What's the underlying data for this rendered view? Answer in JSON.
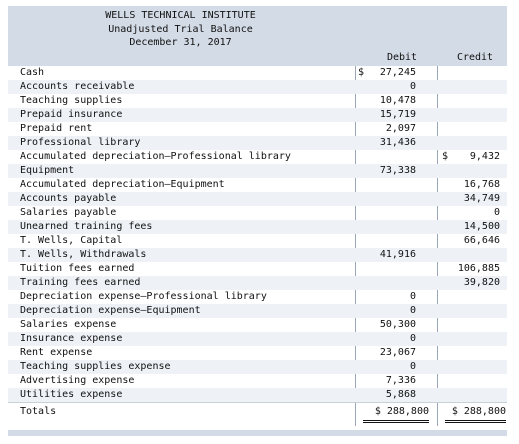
{
  "header": {
    "company": "WELLS TECHNICAL INSTITUTE",
    "title": "Unadjusted Trial Balance",
    "date": "December 31, 2017",
    "debit_label": "Debit",
    "credit_label": "Credit"
  },
  "rows": [
    {
      "account": "Cash",
      "debit": "27,245",
      "debit_cur": "$",
      "credit": "",
      "credit_cur": ""
    },
    {
      "account": "Accounts receivable",
      "debit": "0",
      "debit_cur": "",
      "credit": "",
      "credit_cur": ""
    },
    {
      "account": "Teaching supplies",
      "debit": "10,478",
      "debit_cur": "",
      "credit": "",
      "credit_cur": ""
    },
    {
      "account": "Prepaid insurance",
      "debit": "15,719",
      "debit_cur": "",
      "credit": "",
      "credit_cur": ""
    },
    {
      "account": "Prepaid rent",
      "debit": "2,097",
      "debit_cur": "",
      "credit": "",
      "credit_cur": ""
    },
    {
      "account": "Professional library",
      "debit": "31,436",
      "debit_cur": "",
      "credit": "",
      "credit_cur": ""
    },
    {
      "account": "Accumulated depreciation—Professional library",
      "debit": "",
      "debit_cur": "",
      "credit": "9,432",
      "credit_cur": "$"
    },
    {
      "account": "Equipment",
      "debit": "73,338",
      "debit_cur": "",
      "credit": "",
      "credit_cur": ""
    },
    {
      "account": "Accumulated depreciation—Equipment",
      "debit": "",
      "debit_cur": "",
      "credit": "16,768",
      "credit_cur": ""
    },
    {
      "account": "Accounts payable",
      "debit": "",
      "debit_cur": "",
      "credit": "34,749",
      "credit_cur": ""
    },
    {
      "account": "Salaries payable",
      "debit": "",
      "debit_cur": "",
      "credit": "0",
      "credit_cur": ""
    },
    {
      "account": "Unearned training fees",
      "debit": "",
      "debit_cur": "",
      "credit": "14,500",
      "credit_cur": ""
    },
    {
      "account": "T. Wells, Capital",
      "debit": "",
      "debit_cur": "",
      "credit": "66,646",
      "credit_cur": ""
    },
    {
      "account": "T. Wells, Withdrawals",
      "debit": "41,916",
      "debit_cur": "",
      "credit": "",
      "credit_cur": ""
    },
    {
      "account": "Tuition fees earned",
      "debit": "",
      "debit_cur": "",
      "credit": "106,885",
      "credit_cur": ""
    },
    {
      "account": "Training fees earned",
      "debit": "",
      "debit_cur": "",
      "credit": "39,820",
      "credit_cur": ""
    },
    {
      "account": "Depreciation expense—Professional library",
      "debit": "0",
      "debit_cur": "",
      "credit": "",
      "credit_cur": ""
    },
    {
      "account": "Depreciation expense—Equipment",
      "debit": "0",
      "debit_cur": "",
      "credit": "",
      "credit_cur": ""
    },
    {
      "account": "Salaries expense",
      "debit": "50,300",
      "debit_cur": "",
      "credit": "",
      "credit_cur": ""
    },
    {
      "account": "Insurance expense",
      "debit": "0",
      "debit_cur": "",
      "credit": "",
      "credit_cur": ""
    },
    {
      "account": "Rent expense",
      "debit": "23,067",
      "debit_cur": "",
      "credit": "",
      "credit_cur": ""
    },
    {
      "account": "Teaching supplies expense",
      "debit": "0",
      "debit_cur": "",
      "credit": "",
      "credit_cur": ""
    },
    {
      "account": "Advertising expense",
      "debit": "7,336",
      "debit_cur": "",
      "credit": "",
      "credit_cur": ""
    },
    {
      "account": "Utilities expense",
      "debit": "5,868",
      "debit_cur": "",
      "credit": "",
      "credit_cur": ""
    }
  ],
  "totals": {
    "label": "Totals",
    "debit": "$ 288,800",
    "credit": "$ 288,800"
  }
}
